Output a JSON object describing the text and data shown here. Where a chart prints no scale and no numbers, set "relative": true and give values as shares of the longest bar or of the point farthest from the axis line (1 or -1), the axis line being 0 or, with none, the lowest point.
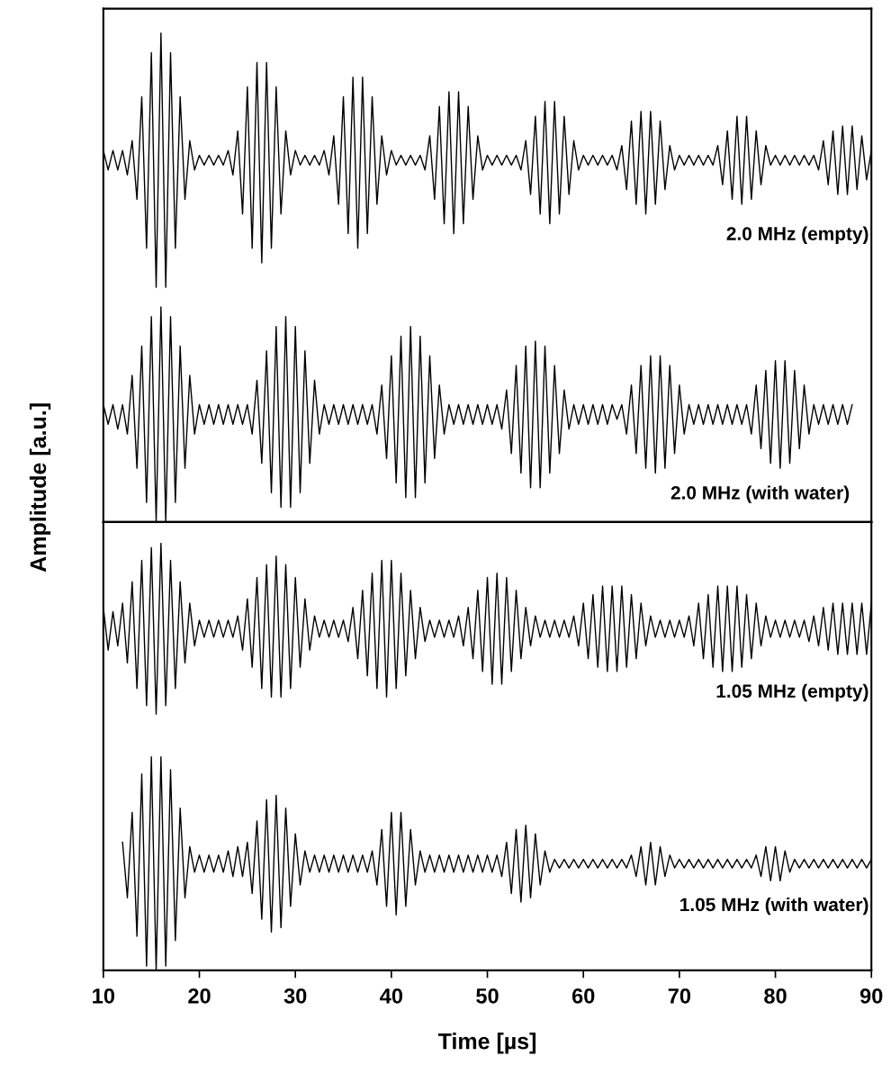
{
  "chart_data": [
    {
      "type": "line",
      "relative": true,
      "ylabel": "Amplitude [a.u.]",
      "xlim": [
        10,
        90
      ],
      "tick_labels": false,
      "x": [
        10,
        10.5,
        11,
        11.5,
        12,
        12.5,
        13,
        13.5,
        14,
        14.5,
        15,
        15.5,
        16,
        16.5,
        17,
        17.5,
        18,
        18.5,
        19,
        19.5,
        20,
        20.5,
        21,
        21.5,
        22,
        22.5,
        23,
        23.5,
        24,
        24.5,
        25,
        25.5,
        26,
        26.5,
        27,
        27.5,
        28,
        28.5,
        29,
        29.5,
        30,
        30.5,
        31,
        31.5,
        32,
        32.5,
        33,
        33.5,
        34,
        34.5,
        35,
        35.5,
        36,
        36.5,
        37,
        37.5,
        38,
        38.5,
        39,
        39.5,
        40,
        40.5,
        41,
        41.5,
        42,
        42.5,
        43,
        43.5,
        44,
        44.5,
        45,
        45.5,
        46,
        46.5,
        47,
        47.5,
        48,
        48.5,
        49,
        49.5,
        50,
        50.5,
        51,
        51.5,
        52,
        52.5,
        53,
        53.5,
        54,
        54.5,
        55,
        55.5,
        56,
        56.5,
        57,
        57.5,
        58,
        58.5,
        59,
        59.5,
        60,
        60.5,
        61,
        61.5,
        62,
        62.5,
        63,
        63.5,
        64,
        64.5,
        65,
        65.5,
        66,
        66.5,
        67,
        67.5,
        68,
        68.5,
        69,
        69.5,
        70,
        70.5,
        71,
        71.5,
        72,
        72.5,
        73,
        73.5,
        74,
        74.5,
        75,
        75.5,
        76,
        76.5,
        77,
        77.5,
        78,
        78.5,
        79,
        79.5,
        80,
        80.5,
        81,
        81.5,
        82,
        82.5,
        83,
        83.5,
        84,
        84.5,
        85,
        85.5,
        86,
        86.5,
        87,
        87.5,
        88,
        88.5,
        89,
        89.5,
        90
      ],
      "series": [
        {
          "name": "2.0 MHz (empty)",
          "color": "#000000",
          "values": [
            0.76,
            0.72,
            0.76,
            0.72,
            0.76,
            0.71,
            0.78,
            0.66,
            0.87,
            0.56,
            0.96,
            0.48,
            1.0,
            0.48,
            0.96,
            0.56,
            0.87,
            0.66,
            0.78,
            0.72,
            0.75,
            0.73,
            0.75,
            0.73,
            0.75,
            0.73,
            0.76,
            0.71,
            0.8,
            0.63,
            0.89,
            0.56,
            0.94,
            0.53,
            0.94,
            0.56,
            0.89,
            0.63,
            0.8,
            0.71,
            0.76,
            0.73,
            0.75,
            0.73,
            0.75,
            0.73,
            0.76,
            0.71,
            0.79,
            0.65,
            0.87,
            0.59,
            0.91,
            0.56,
            0.91,
            0.59,
            0.87,
            0.65,
            0.79,
            0.71,
            0.76,
            0.73,
            0.75,
            0.73,
            0.75,
            0.73,
            0.75,
            0.72,
            0.79,
            0.66,
            0.85,
            0.61,
            0.88,
            0.59,
            0.88,
            0.61,
            0.85,
            0.66,
            0.79,
            0.72,
            0.75,
            0.73,
            0.75,
            0.73,
            0.75,
            0.73,
            0.75,
            0.72,
            0.78,
            0.67,
            0.83,
            0.63,
            0.86,
            0.61,
            0.86,
            0.63,
            0.83,
            0.67,
            0.78,
            0.72,
            0.75,
            0.73,
            0.75,
            0.73,
            0.75,
            0.73,
            0.75,
            0.72,
            0.77,
            0.68,
            0.82,
            0.65,
            0.84,
            0.63,
            0.84,
            0.65,
            0.82,
            0.68,
            0.77,
            0.72,
            0.75,
            0.73,
            0.75,
            0.73,
            0.75,
            0.73,
            0.75,
            0.73,
            0.77,
            0.69,
            0.8,
            0.66,
            0.83,
            0.65,
            0.83,
            0.66,
            0.8,
            0.69,
            0.77,
            0.73,
            0.75,
            0.73,
            0.75,
            0.73,
            0.75,
            0.73,
            0.75,
            0.73,
            0.75,
            0.72,
            0.78,
            0.69,
            0.8,
            0.67,
            0.81,
            0.67,
            0.81,
            0.68,
            0.79,
            0.7,
            0.76
          ]
        },
        {
          "name": "2.0 MHz (with water)",
          "color": "#000000",
          "values": [
            0.24,
            0.2,
            0.24,
            0.19,
            0.24,
            0.18,
            0.3,
            0.11,
            0.36,
            0.04,
            0.42,
            0.0,
            0.44,
            0.0,
            0.42,
            0.04,
            0.36,
            0.11,
            0.3,
            0.18,
            0.24,
            0.2,
            0.24,
            0.2,
            0.24,
            0.2,
            0.24,
            0.2,
            0.24,
            0.2,
            0.24,
            0.18,
            0.29,
            0.12,
            0.35,
            0.06,
            0.4,
            0.03,
            0.42,
            0.03,
            0.4,
            0.06,
            0.35,
            0.12,
            0.29,
            0.18,
            0.24,
            0.2,
            0.24,
            0.2,
            0.24,
            0.2,
            0.24,
            0.2,
            0.24,
            0.2,
            0.24,
            0.18,
            0.28,
            0.13,
            0.34,
            0.08,
            0.38,
            0.05,
            0.4,
            0.05,
            0.38,
            0.08,
            0.34,
            0.13,
            0.28,
            0.18,
            0.24,
            0.2,
            0.24,
            0.2,
            0.24,
            0.2,
            0.24,
            0.2,
            0.24,
            0.2,
            0.24,
            0.19,
            0.27,
            0.14,
            0.32,
            0.1,
            0.36,
            0.07,
            0.37,
            0.07,
            0.36,
            0.1,
            0.32,
            0.14,
            0.27,
            0.19,
            0.24,
            0.2,
            0.24,
            0.2,
            0.24,
            0.2,
            0.24,
            0.2,
            0.24,
            0.21,
            0.24,
            0.18,
            0.28,
            0.14,
            0.32,
            0.11,
            0.34,
            0.1,
            0.34,
            0.11,
            0.32,
            0.14,
            0.28,
            0.18,
            0.24,
            0.2,
            0.24,
            0.2,
            0.24,
            0.2,
            0.24,
            0.2,
            0.24,
            0.2,
            0.24,
            0.2,
            0.24,
            0.18,
            0.28,
            0.15,
            0.31,
            0.12,
            0.33,
            0.11,
            0.33,
            0.12,
            0.31,
            0.15,
            0.28,
            0.18,
            0.24,
            0.2,
            0.24,
            0.2,
            0.24,
            0.2,
            0.24,
            0.2,
            0.24,
            null,
            null,
            null,
            null
          ]
        }
      ]
    },
    {
      "type": "line",
      "relative": true,
      "xlabel": "Time [µs]",
      "xlim": [
        10,
        90
      ],
      "xticks": [
        10,
        20,
        30,
        40,
        50,
        60,
        70,
        80,
        90
      ],
      "tick_labels": "x",
      "x": [
        10,
        10.5,
        11,
        11.5,
        12,
        12.5,
        13,
        13.5,
        14,
        14.5,
        15,
        15.5,
        16,
        16.5,
        17,
        17.5,
        18,
        18.5,
        19,
        19.5,
        20,
        20.5,
        21,
        21.5,
        22,
        22.5,
        23,
        23.5,
        24,
        24.5,
        25,
        25.5,
        26,
        26.5,
        27,
        27.5,
        28,
        28.5,
        29,
        29.5,
        30,
        30.5,
        31,
        31.5,
        32,
        32.5,
        33,
        33.5,
        34,
        34.5,
        35,
        35.5,
        36,
        36.5,
        37,
        37.5,
        38,
        38.5,
        39,
        39.5,
        40,
        40.5,
        41,
        41.5,
        42,
        42.5,
        43,
        43.5,
        44,
        44.5,
        45,
        45.5,
        46,
        46.5,
        47,
        47.5,
        48,
        48.5,
        49,
        49.5,
        50,
        50.5,
        51,
        51.5,
        52,
        52.5,
        53,
        53.5,
        54,
        54.5,
        55,
        55.5,
        56,
        56.5,
        57,
        57.5,
        58,
        58.5,
        59,
        59.5,
        60,
        60.5,
        61,
        61.5,
        62,
        62.5,
        63,
        63.5,
        64,
        64.5,
        65,
        65.5,
        66,
        66.5,
        67,
        67.5,
        68,
        68.5,
        69,
        69.5,
        70,
        70.5,
        71,
        71.5,
        72,
        72.5,
        73,
        73.5,
        74,
        74.5,
        75,
        75.5,
        76,
        76.5,
        77,
        77.5,
        78,
        78.5,
        79,
        79.5,
        80,
        80.5,
        81,
        81.5,
        82,
        82.5,
        83,
        83.5,
        84,
        84.5,
        85,
        85.5,
        86,
        86.5,
        87,
        87.5,
        88,
        88.5,
        89,
        89.5,
        90
      ],
      "series": [
        {
          "name": "1.05 MHz (empty)",
          "color": "#000000",
          "values": [
            0.85,
            0.75,
            0.84,
            0.76,
            0.86,
            0.72,
            0.91,
            0.66,
            0.96,
            0.62,
            0.99,
            0.6,
            1.0,
            0.62,
            0.96,
            0.66,
            0.91,
            0.72,
            0.86,
            0.76,
            0.82,
            0.78,
            0.82,
            0.78,
            0.82,
            0.78,
            0.82,
            0.78,
            0.83,
            0.75,
            0.87,
            0.71,
            0.92,
            0.66,
            0.95,
            0.64,
            0.97,
            0.64,
            0.95,
            0.66,
            0.92,
            0.71,
            0.87,
            0.75,
            0.83,
            0.78,
            0.82,
            0.78,
            0.82,
            0.78,
            0.82,
            0.77,
            0.85,
            0.73,
            0.89,
            0.69,
            0.93,
            0.66,
            0.96,
            0.64,
            0.96,
            0.66,
            0.93,
            0.69,
            0.89,
            0.73,
            0.85,
            0.77,
            0.82,
            0.78,
            0.82,
            0.78,
            0.82,
            0.78,
            0.83,
            0.76,
            0.85,
            0.73,
            0.89,
            0.7,
            0.92,
            0.67,
            0.93,
            0.67,
            0.92,
            0.7,
            0.89,
            0.73,
            0.85,
            0.76,
            0.83,
            0.78,
            0.82,
            0.78,
            0.82,
            0.78,
            0.82,
            0.78,
            0.83,
            0.76,
            0.86,
            0.73,
            0.88,
            0.71,
            0.9,
            0.7,
            0.9,
            0.7,
            0.9,
            0.71,
            0.88,
            0.73,
            0.86,
            0.76,
            0.83,
            0.78,
            0.82,
            0.78,
            0.82,
            0.78,
            0.82,
            0.78,
            0.83,
            0.76,
            0.86,
            0.73,
            0.88,
            0.71,
            0.9,
            0.7,
            0.9,
            0.7,
            0.9,
            0.71,
            0.88,
            0.73,
            0.86,
            0.76,
            0.83,
            0.78,
            0.82,
            0.78,
            0.82,
            0.78,
            0.82,
            0.78,
            0.82,
            0.77,
            0.83,
            0.76,
            0.85,
            0.75,
            0.86,
            0.74,
            0.86,
            0.74,
            0.86,
            0.74,
            0.86,
            0.74,
            0.86
          ]
        },
        {
          "name": "1.05 MHz (with water)",
          "color": "#000000",
          "values": [
            null,
            null,
            null,
            null,
            0.3,
            0.17,
            0.37,
            0.08,
            0.46,
            0.01,
            0.5,
            0.0,
            0.5,
            0.01,
            0.47,
            0.07,
            0.38,
            0.17,
            0.29,
            0.23,
            0.27,
            0.23,
            0.27,
            0.23,
            0.27,
            0.23,
            0.28,
            0.22,
            0.29,
            0.22,
            0.3,
            0.18,
            0.35,
            0.12,
            0.4,
            0.09,
            0.41,
            0.1,
            0.38,
            0.15,
            0.32,
            0.2,
            0.28,
            0.23,
            0.27,
            0.23,
            0.27,
            0.23,
            0.27,
            0.23,
            0.27,
            0.23,
            0.27,
            0.23,
            0.27,
            0.23,
            0.28,
            0.2,
            0.33,
            0.15,
            0.37,
            0.13,
            0.37,
            0.15,
            0.33,
            0.2,
            0.28,
            0.23,
            0.27,
            0.23,
            0.27,
            0.23,
            0.27,
            0.23,
            0.27,
            0.23,
            0.27,
            0.23,
            0.27,
            0.23,
            0.27,
            0.23,
            0.27,
            0.22,
            0.3,
            0.18,
            0.33,
            0.16,
            0.34,
            0.17,
            0.32,
            0.2,
            0.28,
            0.23,
            0.26,
            0.24,
            0.26,
            0.24,
            0.26,
            0.24,
            0.26,
            0.24,
            0.26,
            0.24,
            0.26,
            0.24,
            0.26,
            0.24,
            0.26,
            0.24,
            0.27,
            0.22,
            0.29,
            0.2,
            0.3,
            0.2,
            0.29,
            0.22,
            0.27,
            0.24,
            0.26,
            0.24,
            0.26,
            0.24,
            0.26,
            0.24,
            0.26,
            0.24,
            0.26,
            0.24,
            0.26,
            0.24,
            0.26,
            0.24,
            0.26,
            0.24,
            0.27,
            0.22,
            0.29,
            0.21,
            0.29,
            0.21,
            0.28,
            0.23,
            0.26,
            0.24,
            0.26,
            0.24,
            0.26,
            0.24,
            0.26,
            0.24,
            0.26,
            0.24,
            0.26,
            0.24,
            0.26,
            0.24,
            0.26,
            0.24,
            0.26
          ]
        }
      ]
    }
  ]
}
